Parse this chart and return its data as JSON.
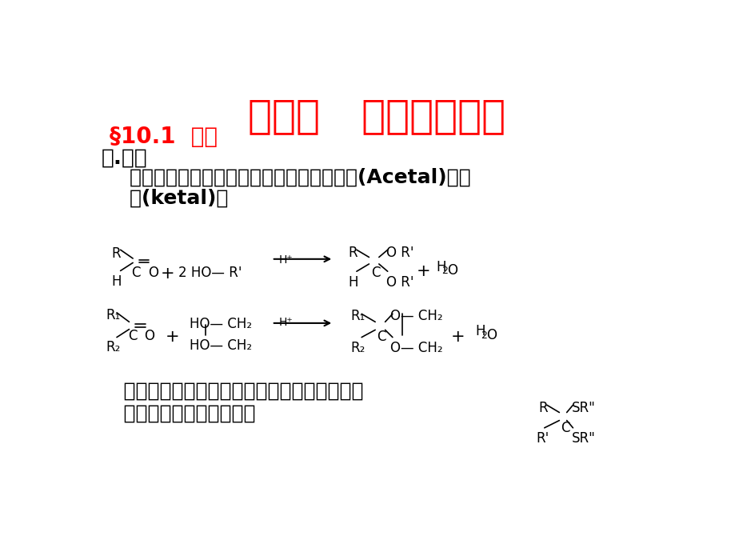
{
  "title": "第十章   缩羰基类香料",
  "title_color": "#FF0000",
  "title_fontsize": 36,
  "section": "§10.1  概述",
  "section_color": "#FF0000",
  "section_fontsize": 20,
  "heading1": "一.定义",
  "heading1_color": "#000000",
  "heading1_fontsize": 19,
  "body_text1": "    醛或酮与醇发生缩合反应生成产物称为缩醛(Acetal)或缩",
  "body_text2": "    酮(ketal)。",
  "body_fontsize": 18,
  "footer_text1": "  缩醛比缩酮容易生成，缩硫醛（酮）比相应的",
  "footer_text2": "  缩醛（酮）更容易生成。",
  "footer_fontsize": 18,
  "bg_color": "#FFFFFF",
  "text_color": "#000000"
}
